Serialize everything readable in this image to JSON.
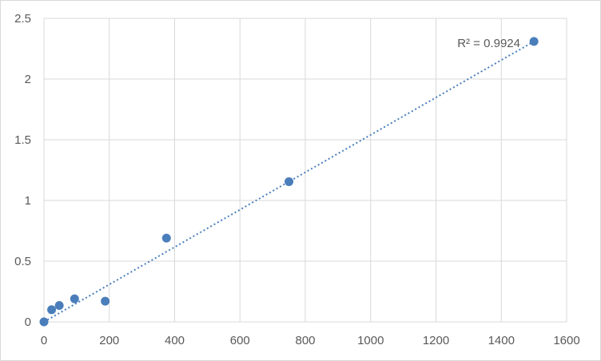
{
  "chart_data": {
    "type": "scatter",
    "title": "",
    "xlabel": "",
    "ylabel": "",
    "xlim": [
      0,
      1600
    ],
    "ylim": [
      0,
      2.5
    ],
    "x_ticks": [
      0,
      200,
      400,
      600,
      800,
      1000,
      1200,
      1400,
      1600
    ],
    "y_ticks": [
      0,
      0.5,
      1,
      1.5,
      2,
      2.5
    ],
    "x_tick_labels": [
      "0",
      "200",
      "400",
      "600",
      "800",
      "1000",
      "1200",
      "1400",
      "1600"
    ],
    "y_tick_labels": [
      "0",
      "0.5",
      "1",
      "1.5",
      "2",
      "2.5"
    ],
    "grid": true,
    "legend": "none",
    "series": [
      {
        "points": [
          {
            "x": 0,
            "y": 0.0
          },
          {
            "x": 23.4,
            "y": 0.1
          },
          {
            "x": 46.9,
            "y": 0.135
          },
          {
            "x": 93.75,
            "y": 0.19
          },
          {
            "x": 187.5,
            "y": 0.17
          },
          {
            "x": 375,
            "y": 0.69
          },
          {
            "x": 750,
            "y": 1.155
          },
          {
            "x": 1500,
            "y": 2.31
          }
        ],
        "color": "#4a7ebb"
      }
    ],
    "trendline": {
      "type": "linear",
      "from": {
        "x": 0,
        "y": 0.0
      },
      "to": {
        "x": 1500,
        "y": 2.31
      },
      "style": "dotted",
      "color": "#4a7ebb",
      "r2_label": "R² = 0.9924"
    },
    "colors": {
      "gridline": "#d9d9d9",
      "axis_text": "#595959",
      "marker": "#4a7ebb"
    }
  }
}
